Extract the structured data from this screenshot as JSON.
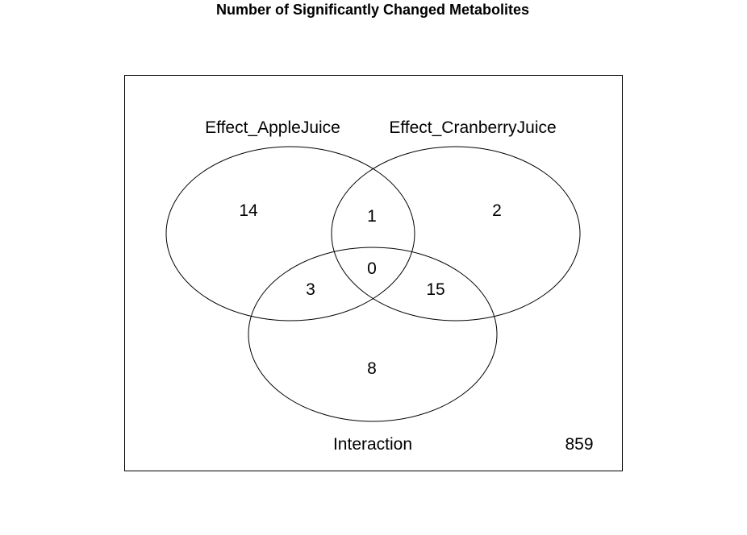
{
  "title": "Number of Significantly Changed Metabolites",
  "sets": [
    {
      "name": "Effect_AppleJuice"
    },
    {
      "name": "Effect_CranberryJuice"
    },
    {
      "name": "Interaction"
    }
  ],
  "regions": {
    "apple_only": "14",
    "cranberry_only": "2",
    "interaction_only": "8",
    "apple_cranberry": "1",
    "apple_interaction": "3",
    "cranberry_interaction": "15",
    "all_three": "0",
    "outside": "859"
  },
  "colors": {
    "stroke": "#000000",
    "background": "#ffffff"
  }
}
